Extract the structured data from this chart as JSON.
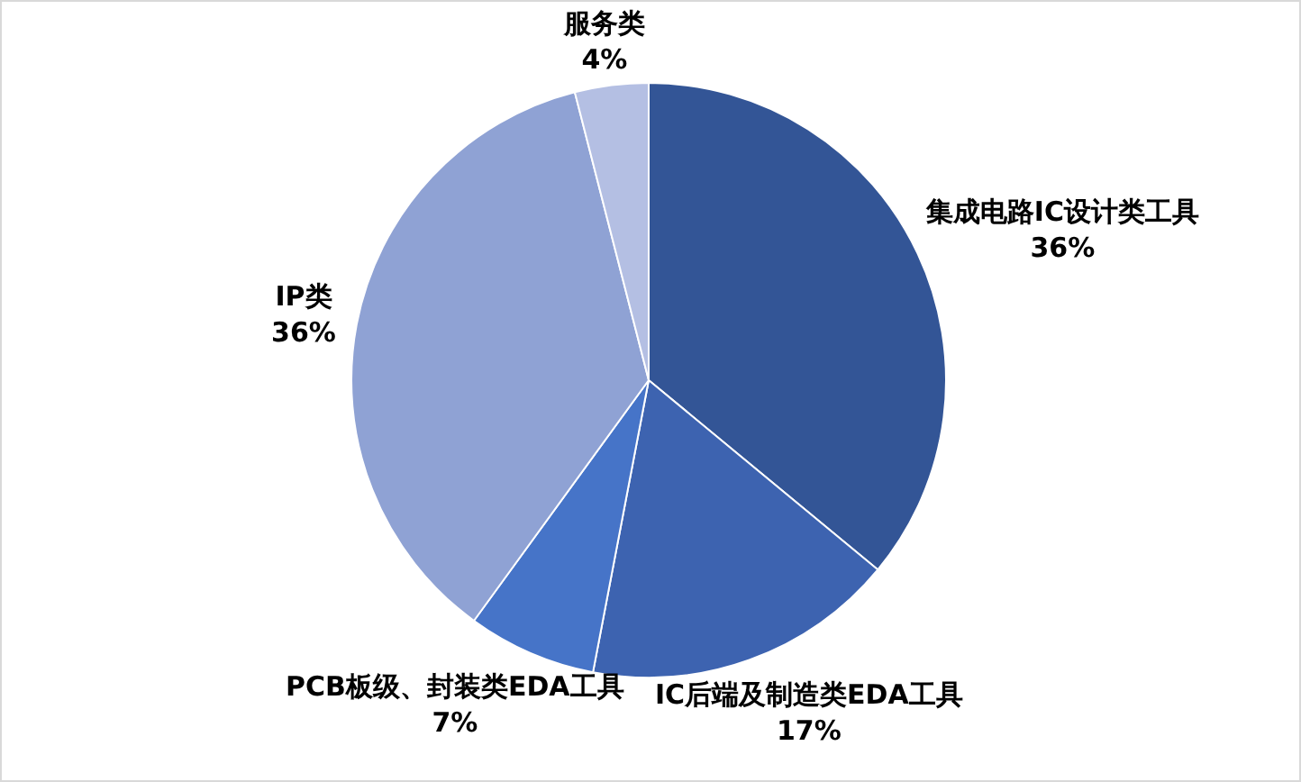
{
  "chart_data": {
    "type": "pie",
    "categories": [
      "集成电路IC设计类工具",
      "IC后端及制造类EDA工具",
      "PCB板级、封装类EDA工具",
      "IP类",
      "服务类"
    ],
    "values": [
      36,
      17,
      7,
      36,
      4
    ],
    "colors": [
      "#335596",
      "#3d63b0",
      "#4674c8",
      "#8fa2d4",
      "#b4bfe3"
    ],
    "value_labels": [
      "36%",
      "17%",
      "7%",
      "36%",
      "4%"
    ]
  }
}
